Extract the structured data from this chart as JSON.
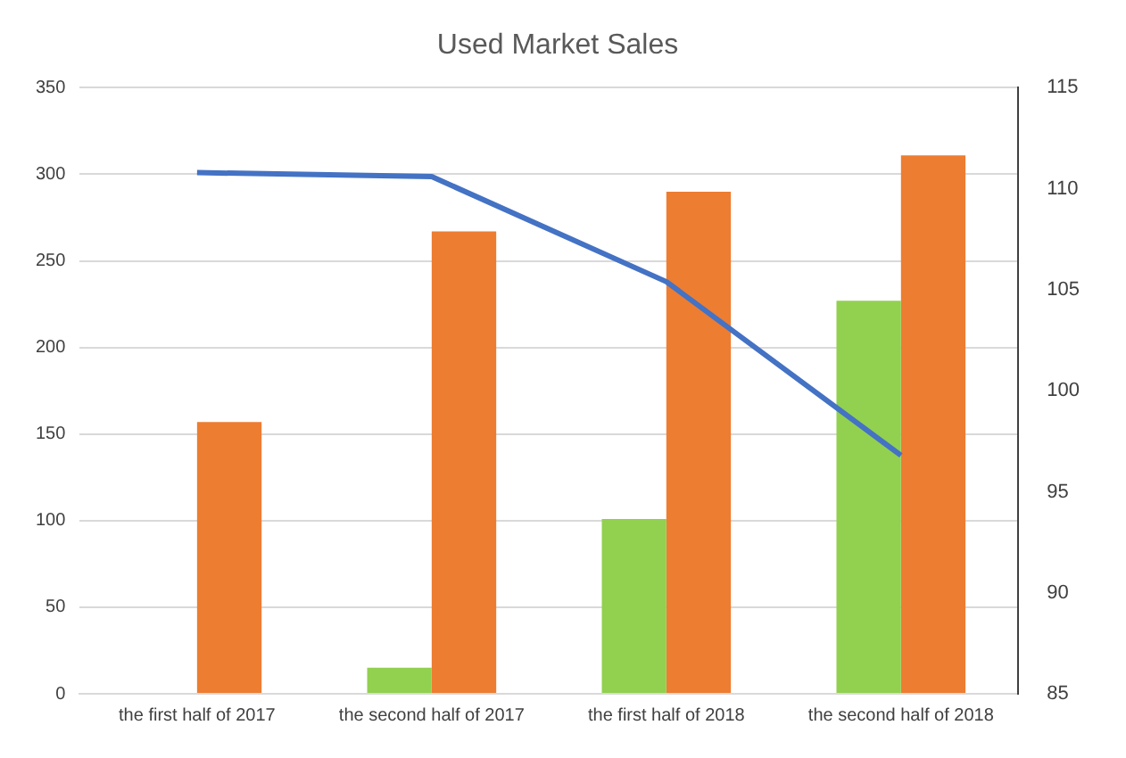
{
  "chart_data": {
    "type": "bar",
    "title": "Used Market Sales",
    "categories": [
      "the first half of 2017",
      "the second half of 2017",
      "the first half of 2018",
      "the second half of 2018"
    ],
    "series": [
      {
        "color": "#92d050",
        "values": [
          0,
          15,
          101,
          227
        ]
      },
      {
        "color": "#ed7d31",
        "values": [
          157,
          267,
          290,
          311
        ]
      },
      {
        "type": "line",
        "axis": "y2",
        "color": "#4472c4",
        "values": [
          110.8,
          110.6,
          105.4,
          96.8
        ]
      }
    ],
    "ylim": [
      0,
      350
    ],
    "yticks": [
      0,
      50,
      100,
      150,
      200,
      250,
      300,
      350
    ],
    "y2lim": [
      85,
      115
    ],
    "y2ticks": [
      85,
      90,
      95,
      100,
      105,
      110,
      115
    ],
    "grid": "y",
    "legend": false,
    "marker": "none",
    "line_style": "solid"
  }
}
